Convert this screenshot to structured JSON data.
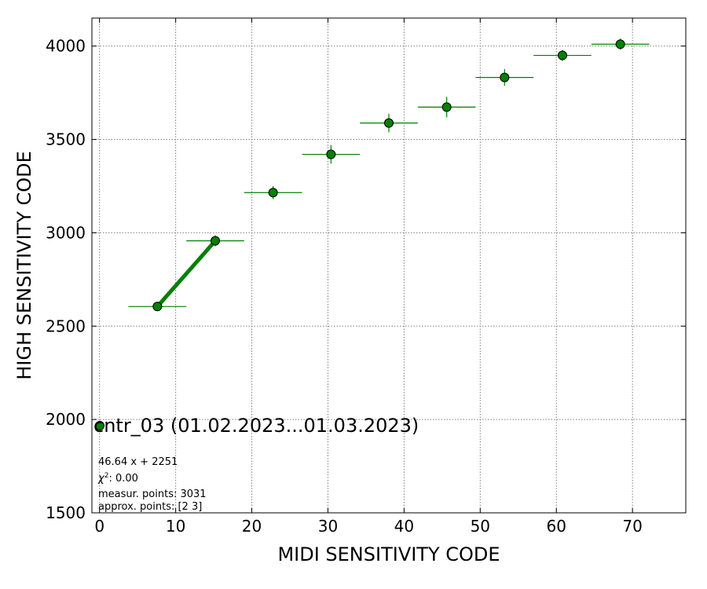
{
  "chart_data": {
    "type": "scatter",
    "xlabel": "MIDI SENSITIVITY CODE",
    "ylabel": "HIGH SENSITIVITY CODE",
    "xlim": [
      -1,
      77
    ],
    "ylim": [
      1500,
      4150
    ],
    "xticks": [
      0,
      10,
      20,
      30,
      40,
      50,
      60,
      70
    ],
    "yticks": [
      1500,
      2000,
      2500,
      3000,
      3500,
      4000
    ],
    "grid": true,
    "series": [
      {
        "name": "cntr_03 (01.02.2023...01.03.2023)",
        "color": "#008000",
        "points": [
          {
            "x": 7.6,
            "y": 2605,
            "xerr": 3.8,
            "yerr": 15
          },
          {
            "x": 15.2,
            "y": 2957,
            "xerr": 3.8,
            "yerr": 30
          },
          {
            "x": 22.8,
            "y": 3215,
            "xerr": 3.8,
            "yerr": 35
          },
          {
            "x": 30.4,
            "y": 3420,
            "xerr": 3.8,
            "yerr": 50
          },
          {
            "x": 38.0,
            "y": 3588,
            "xerr": 3.8,
            "yerr": 50
          },
          {
            "x": 45.6,
            "y": 3673,
            "xerr": 3.8,
            "yerr": 55
          },
          {
            "x": 53.2,
            "y": 3832,
            "xerr": 3.8,
            "yerr": 45
          },
          {
            "x": 60.8,
            "y": 3950,
            "xerr": 3.8,
            "yerr": 30
          },
          {
            "x": 68.4,
            "y": 4010,
            "xerr": 3.8,
            "yerr": 30
          }
        ]
      }
    ],
    "fit_line": {
      "x": [
        7.6,
        15.2
      ],
      "y": [
        2605,
        2957
      ],
      "color": "#008000"
    },
    "legend": {
      "label": "cntr_03 (01.02.2023...01.03.2023)",
      "placement": "lower-left"
    },
    "stats": [
      "46.64 x + 2251",
      "measur. points: 3031",
      "approx. points: [2 3]"
    ],
    "chi_label": "χ",
    "chi_power": "2",
    "chi_value": ": 0.00"
  }
}
